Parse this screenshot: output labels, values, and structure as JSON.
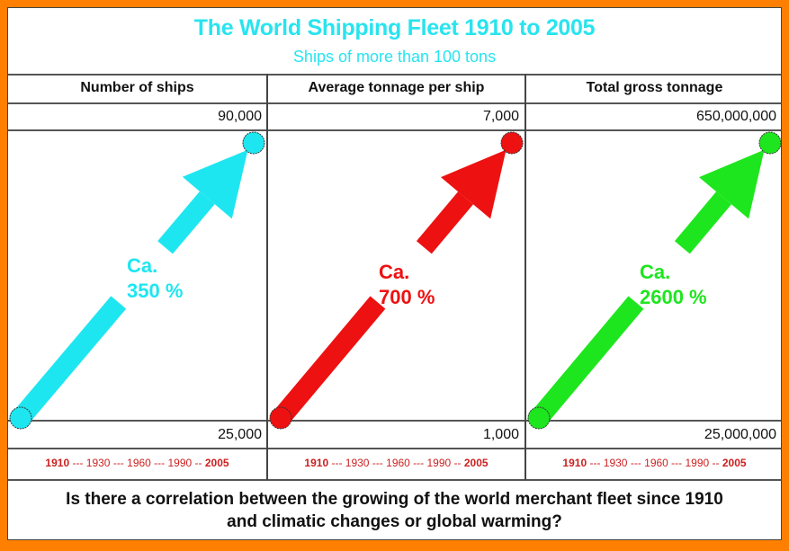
{
  "chart_data": {
    "type": "line",
    "title": "The World Shipping Fleet  1910 to 2005",
    "subtitle": "Ships of more than 100 tons",
    "x": [
      "1910",
      "1930",
      "1960",
      "1990",
      "2005"
    ],
    "panels": [
      {
        "header": "Number of ships",
        "start_value": 25000,
        "end_value": 90000,
        "start_label": "25,000",
        "end_label": "90,000",
        "annotation": [
          "Ca.",
          "350 %"
        ],
        "color": "#1ee6f0"
      },
      {
        "header": "Average tonnage per ship",
        "start_value": 1000,
        "end_value": 7000,
        "start_label": "1,000",
        "end_label": "7,000",
        "annotation": [
          "Ca.",
          "700 %"
        ],
        "color": "#ee1111"
      },
      {
        "header": "Total gross tonnage",
        "start_value": 25000000,
        "end_value": 650000000,
        "start_label": "25,000,000",
        "end_label": "650,000,000",
        "annotation": [
          "Ca.",
          "2600 %"
        ],
        "color": "#1ee61e"
      }
    ],
    "year_axis": {
      "first": "1910",
      "sep1": " --- ",
      "y2": "1930",
      "sep2": " --- ",
      "y3": "1960",
      "sep3": " --- ",
      "y4": "1990",
      "sep4": " -- ",
      "last": "2005"
    },
    "footer_question": [
      "Is there a correlation between the growing of the world merchant fleet since 1910",
      "and climatic changes or global warming?"
    ]
  },
  "colors": {
    "border": "#ff8000",
    "title": "#28e4ef",
    "years": "#cc1f1f"
  }
}
